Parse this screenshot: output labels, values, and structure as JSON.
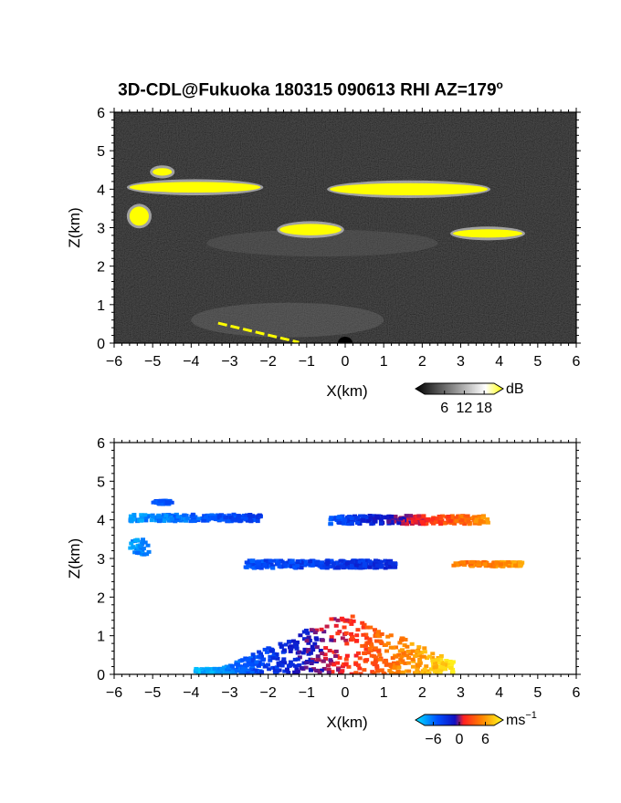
{
  "title": "3D-CDL@Fukuoka 180315 090613 RHI AZ=179",
  "title_degree": "o",
  "chart_data": [
    {
      "type": "heatmap",
      "panel": "reflectivity",
      "xlabel": "X(km)",
      "ylabel": "Z(km)",
      "xlim": [
        -6,
        6
      ],
      "ylim": [
        0,
        6
      ],
      "xticks": [
        "-6",
        "-5",
        "-4",
        "-3",
        "-2",
        "-1",
        "0",
        "1",
        "2",
        "3",
        "4",
        "5",
        "6"
      ],
      "yticks": [
        "0",
        "1",
        "2",
        "3",
        "4",
        "5",
        "6"
      ],
      "colorbar": {
        "label": "dB",
        "ticks": [
          "6",
          "12",
          "18"
        ],
        "tick_values": [
          6,
          12,
          18
        ],
        "range": [
          0,
          21
        ],
        "colors": [
          "#000000",
          "#ffffff",
          "#ffff00"
        ]
      },
      "background_color": "#111111",
      "cloud_color": "#ffff00",
      "layers": [
        {
          "name": "layer_4km_west",
          "x_range": [
            -5.6,
            -2.2
          ],
          "z_center": 4.05,
          "thickness": 0.18
        },
        {
          "name": "layer_4km_east",
          "x_range": [
            -0.4,
            3.7
          ],
          "z_center": 4.0,
          "thickness": 0.22
        },
        {
          "name": "layer_3km_mid",
          "x_range": [
            -1.7,
            -0.1
          ],
          "z_center": 2.95,
          "thickness": 0.2
        },
        {
          "name": "layer_3km_east",
          "x_range": [
            2.8,
            4.6
          ],
          "z_center": 2.85,
          "thickness": 0.12
        },
        {
          "name": "layer_3km_west",
          "x_range": [
            -5.6,
            -5.1
          ],
          "z_center": 3.3,
          "thickness": 0.4
        },
        {
          "name": "layer_4_5km_west",
          "x_range": [
            -5.0,
            -4.5
          ],
          "z_center": 4.45,
          "thickness": 0.1
        }
      ]
    },
    {
      "type": "heatmap",
      "panel": "doppler_velocity",
      "xlabel": "X(km)",
      "ylabel": "Z(km)",
      "xlim": [
        -6,
        6
      ],
      "ylim": [
        0,
        6
      ],
      "xticks": [
        "-6",
        "-5",
        "-4",
        "-3",
        "-2",
        "-1",
        "0",
        "1",
        "2",
        "3",
        "4",
        "5",
        "6"
      ],
      "yticks": [
        "0",
        "1",
        "2",
        "3",
        "4",
        "5",
        "6"
      ],
      "colorbar": {
        "label": "ms",
        "label_exponent": "-1",
        "ticks": [
          "-6",
          "0",
          "6"
        ],
        "tick_values": [
          -6,
          0,
          6
        ],
        "range": [
          -8,
          8
        ],
        "colors": [
          "#00e5ff",
          "#0050ff",
          "#1010c0",
          "#ff2020",
          "#ff8000",
          "#ffff20"
        ]
      },
      "background_color": "#ffffff",
      "layers": [
        {
          "name": "layer_4km_west",
          "x_range": [
            -5.6,
            -2.2
          ],
          "z_center": 4.05,
          "thickness": 0.18,
          "velocity": [
            -6,
            -3
          ]
        },
        {
          "name": "layer_4km_east",
          "x_range": [
            -0.4,
            3.7
          ],
          "z_center": 4.0,
          "thickness": 0.22,
          "velocity": [
            -4,
            4.5
          ]
        },
        {
          "name": "layer_3km_mid",
          "x_range": [
            -2.6,
            1.3
          ],
          "z_center": 2.85,
          "thickness": 0.2,
          "velocity": [
            -4,
            -2
          ]
        },
        {
          "name": "layer_3km_east",
          "x_range": [
            2.8,
            4.6
          ],
          "z_center": 2.85,
          "thickness": 0.12,
          "velocity": [
            3.5,
            5
          ]
        },
        {
          "name": "layer_3km_west",
          "x_range": [
            -5.6,
            -5.1
          ],
          "z_center": 3.3,
          "thickness": 0.4,
          "velocity": [
            -6,
            -5
          ]
        },
        {
          "name": "layer_4_5km_west",
          "x_range": [
            -5.0,
            -4.5
          ],
          "z_center": 4.45,
          "thickness": 0.1,
          "velocity": [
            -4,
            -4
          ]
        },
        {
          "name": "boundary_layer",
          "x_range": [
            -3.9,
            2.8
          ],
          "z_center": 0.5,
          "thickness": 1.0,
          "velocity": [
            -7,
            7
          ]
        }
      ]
    }
  ]
}
